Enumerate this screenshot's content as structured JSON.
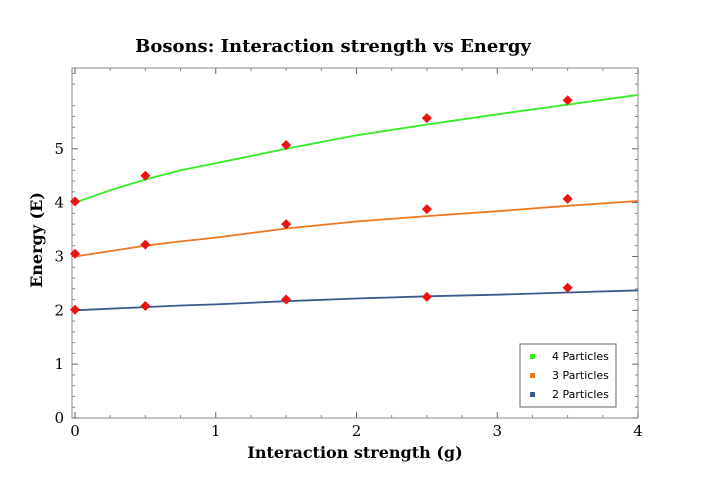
{
  "chart_data": {
    "type": "line",
    "title": "Bosons: Interaction strength vs Energy",
    "xlabel": "Interaction strength (g)",
    "ylabel": "Energy (E)",
    "xlim": [
      0,
      4
    ],
    "ylim": [
      0,
      6.5
    ],
    "x_ticks": [
      0,
      1,
      2,
      3,
      4
    ],
    "y_ticks": [
      0,
      1,
      2,
      3,
      4,
      5
    ],
    "x_tick_labels": [
      "0",
      "1",
      "2",
      "3",
      "4"
    ],
    "y_tick_labels": [
      "0",
      "1",
      "2",
      "3",
      "4",
      "5"
    ],
    "grid": false,
    "legend_position": "bottom-right",
    "series": [
      {
        "name": "4 Particles",
        "color": "#33ee22",
        "curve": {
          "x": [
            0,
            0.25,
            0.5,
            0.75,
            1.0,
            1.5,
            2.0,
            2.5,
            3.0,
            3.5,
            4.0
          ],
          "y": [
            4.0,
            4.23,
            4.43,
            4.6,
            4.73,
            5.0,
            5.25,
            5.45,
            5.64,
            5.82,
            6.0
          ]
        },
        "points": {
          "x": [
            0,
            0.5,
            1.5,
            2.5,
            3.5
          ],
          "y": [
            4.02,
            4.5,
            5.07,
            5.57,
            5.9
          ]
        }
      },
      {
        "name": "3 Particles",
        "color": "#ee7722",
        "curve": {
          "x": [
            0,
            0.25,
            0.5,
            0.75,
            1.0,
            1.5,
            2.0,
            2.5,
            3.0,
            3.5,
            4.0
          ],
          "y": [
            3.0,
            3.1,
            3.2,
            3.28,
            3.35,
            3.52,
            3.65,
            3.75,
            3.84,
            3.94,
            4.03
          ]
        },
        "points": {
          "x": [
            0,
            0.5,
            1.5,
            2.5,
            3.5
          ],
          "y": [
            3.05,
            3.22,
            3.6,
            3.88,
            4.07
          ]
        }
      },
      {
        "name": "2 Particles",
        "color": "#3a5a8c",
        "curve": {
          "x": [
            0,
            0.25,
            0.5,
            0.75,
            1.0,
            1.5,
            2.0,
            2.5,
            3.0,
            3.5,
            4.0
          ],
          "y": [
            2.0,
            2.03,
            2.06,
            2.09,
            2.11,
            2.17,
            2.22,
            2.26,
            2.29,
            2.33,
            2.37
          ]
        },
        "points": {
          "x": [
            0,
            0.5,
            1.5,
            2.5,
            3.5
          ],
          "y": [
            2.01,
            2.08,
            2.2,
            2.25,
            2.42
          ]
        }
      }
    ],
    "marker_color": "#ee1111"
  }
}
